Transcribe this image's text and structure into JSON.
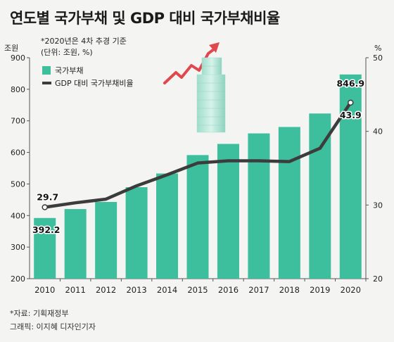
{
  "title": "연도별 국가부채 및 GDP 대비 국가부채비율",
  "notes": {
    "note1": "*2020년은 4차 추경 기준",
    "note2": "(단위: 조원, %)"
  },
  "footer": {
    "source": "*자료: 기획재정부",
    "credit": "그래픽: 이지혜 디자인기자"
  },
  "colors": {
    "bar": "#3dbe9c",
    "line": "#3c3c3c",
    "arrow": "#e0484e",
    "building": "#b9e8dc"
  },
  "chart_data": {
    "type": "bar+line",
    "categories": [
      "2010",
      "2011",
      "2012",
      "2013",
      "2014",
      "2015",
      "2016",
      "2017",
      "2018",
      "2019",
      "2020"
    ],
    "y_left": {
      "label": "조원",
      "min": 200,
      "max": 900,
      "ticks": [
        200,
        300,
        400,
        500,
        600,
        700,
        800,
        900
      ]
    },
    "y_right": {
      "label": "%",
      "min": 20,
      "max": 50,
      "ticks": [
        20,
        30,
        40,
        50
      ]
    },
    "grid": false,
    "legend_position": "top-left",
    "series": [
      {
        "name": "국가부채",
        "type": "bar",
        "axis": "left",
        "values": [
          392.2,
          420.5,
          443.1,
          489.8,
          533.2,
          591.5,
          626.9,
          660.2,
          680.5,
          723.2,
          846.9
        ]
      },
      {
        "name": "GDP 대비 국가부채비율",
        "type": "line",
        "axis": "right",
        "values": [
          29.7,
          30.3,
          30.8,
          32.6,
          34.1,
          35.7,
          36.0,
          36.0,
          35.9,
          37.7,
          43.9
        ]
      }
    ],
    "data_labels": [
      {
        "text": "29.7"
      },
      {
        "text": "392.2"
      },
      {
        "text": "846.9"
      },
      {
        "text": "43.9"
      }
    ]
  }
}
